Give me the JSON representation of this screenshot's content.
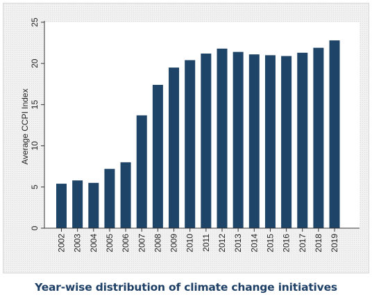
{
  "chart_data": {
    "type": "bar",
    "title": "Year-wise distribution of climate change initiatives",
    "xlabel": "",
    "ylabel": "Average CCPI Index",
    "ylim": [
      0,
      25
    ],
    "yticks": [
      0,
      5,
      10,
      15,
      20,
      25
    ],
    "categories": [
      "2002",
      "2003",
      "2004",
      "2005",
      "2006",
      "2007",
      "2008",
      "2009",
      "2010",
      "2011",
      "2012",
      "2013",
      "2014",
      "2015",
      "2016",
      "2017",
      "2018",
      "2019"
    ],
    "values": [
      5.4,
      5.8,
      5.5,
      7.2,
      8.0,
      13.7,
      17.4,
      19.5,
      20.4,
      21.2,
      21.8,
      21.4,
      21.1,
      21.0,
      20.9,
      21.3,
      21.9,
      22.8
    ],
    "bar_color": "#1e4468",
    "grid": false,
    "legend": "none"
  }
}
